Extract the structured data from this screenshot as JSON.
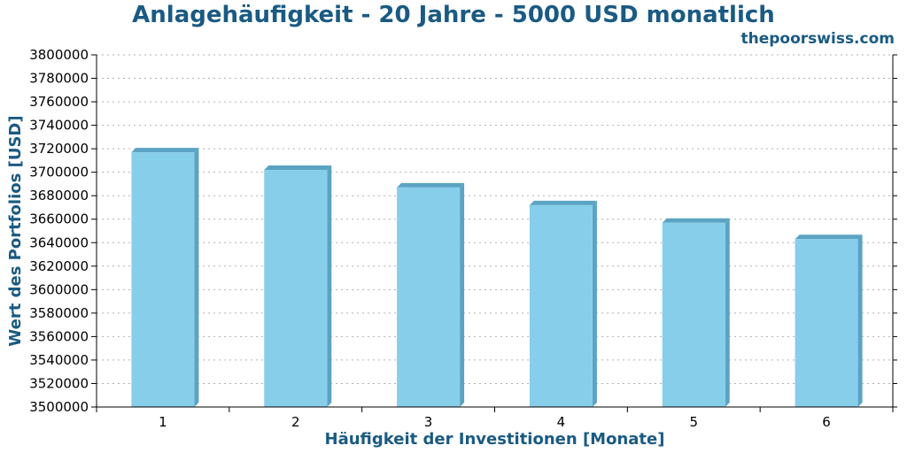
{
  "header": {
    "title": "Anlagehäufigkeit - 20 Jahre - 5000 USD monatlich",
    "watermark": "thepoorswiss.com"
  },
  "chart_data": {
    "type": "bar",
    "title": "Anlagehäufigkeit - 20 Jahre - 5000 USD monatlich",
    "xlabel": "Häufigkeit der Investitionen [Monate]",
    "ylabel": "Wert des Portfolios [USD]",
    "categories": [
      "1",
      "2",
      "3",
      "4",
      "5",
      "6"
    ],
    "values": [
      3717000,
      3702000,
      3687000,
      3672000,
      3657000,
      3643000
    ],
    "ylim": [
      3500000,
      3800000
    ],
    "ytick_step": 20000,
    "grid": true,
    "legend": "none",
    "colors": {
      "bar_front": "#87ceeb",
      "bar_side": "#5ba3c2",
      "bar_top": "#5ba3c2",
      "grid": "#b0b0b0",
      "text_accent": "#1a5a83"
    }
  }
}
